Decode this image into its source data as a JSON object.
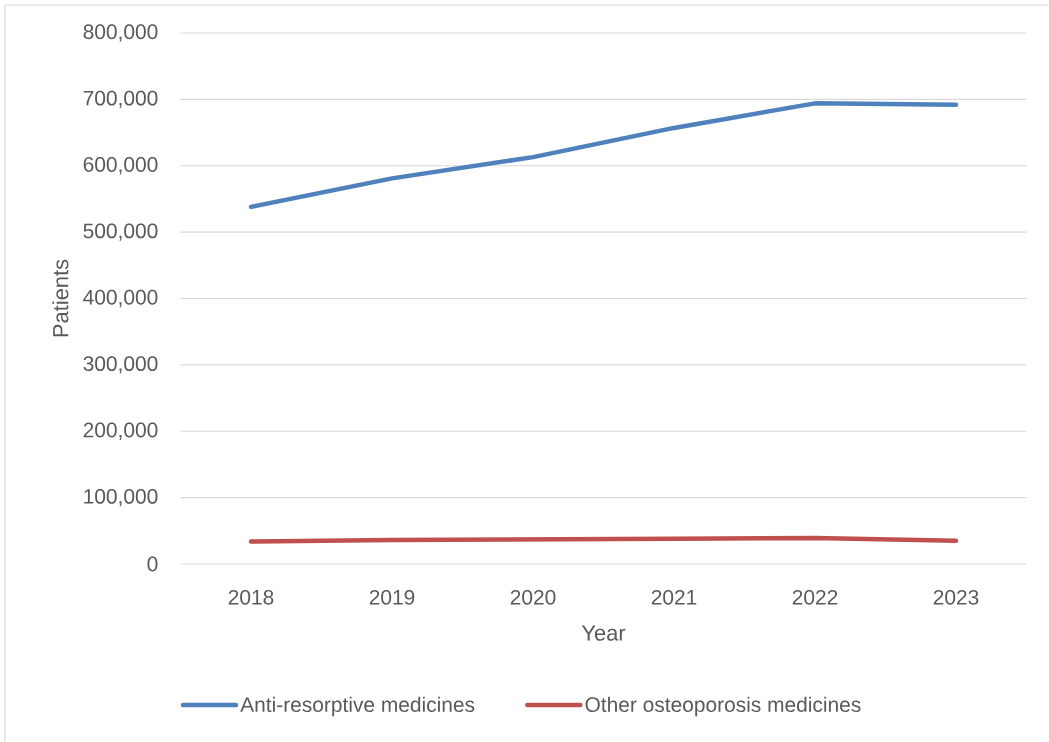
{
  "chart_data": {
    "type": "line",
    "xlabel": "Year",
    "ylabel": "Patients",
    "categories": [
      "2018",
      "2019",
      "2020",
      "2021",
      "2022",
      "2023"
    ],
    "series": [
      {
        "name": "Anti-resorptive medicines",
        "color": "#4f81bd",
        "values": [
          538000,
          581000,
          613000,
          657000,
          694000,
          692000
        ]
      },
      {
        "name": "Other osteoporosis medicines",
        "color": "#c0504d",
        "values": [
          34000,
          36000,
          37000,
          38000,
          39000,
          35000
        ]
      }
    ],
    "ylim": [
      0,
      800000
    ],
    "yticks": [
      0,
      {
        "value": 100000,
        "label": "100,000"
      },
      {
        "value": 200000,
        "label": "200,000"
      },
      {
        "value": 300000,
        "label": "300,000"
      },
      {
        "value": 400000,
        "label": "400,000"
      },
      {
        "value": 500000,
        "label": "500,000"
      },
      {
        "value": 600000,
        "label": "600,000"
      },
      {
        "value": 700000,
        "label": "700,000"
      },
      {
        "value": 800000,
        "label": "800,000"
      }
    ],
    "grid": "y",
    "legend": "bottom"
  }
}
